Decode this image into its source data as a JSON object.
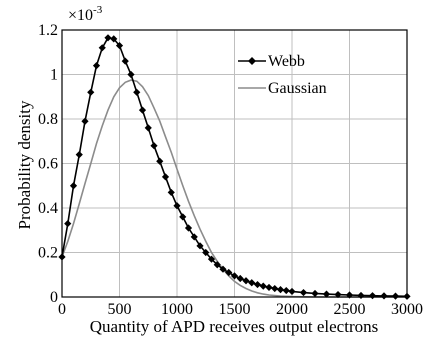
{
  "chart_data": {
    "type": "line",
    "xlabel": "Quantity of APD receives output electrons",
    "ylabel": "Probability density",
    "y_multiplier": "×10",
    "y_multiplier_exponent": "-3",
    "xlim": [
      0,
      3000
    ],
    "ylim": [
      0,
      1.2
    ],
    "x_ticks": [
      "0",
      "500",
      "1000",
      "1500",
      "2000",
      "2500",
      "3000"
    ],
    "y_ticks": [
      "0",
      "0.2",
      "0.4",
      "0.6",
      "0.8",
      "1",
      "1.2"
    ],
    "grid": true,
    "legend_position": "top-right",
    "series": [
      {
        "name": "Webb",
        "color": "#000000",
        "marker": "diamond",
        "x": [
          0,
          50,
          100,
          150,
          200,
          250,
          300,
          350,
          400,
          450,
          500,
          550,
          600,
          650,
          700,
          750,
          800,
          850,
          900,
          950,
          1000,
          1050,
          1100,
          1150,
          1200,
          1250,
          1300,
          1350,
          1400,
          1450,
          1500,
          1550,
          1600,
          1650,
          1700,
          1750,
          1800,
          1850,
          1900,
          1950,
          2000,
          2100,
          2200,
          2300,
          2400,
          2500,
          2600,
          2700,
          2800,
          2900,
          3000
        ],
        "y": [
          0.18,
          0.33,
          0.5,
          0.64,
          0.79,
          0.92,
          1.04,
          1.12,
          1.165,
          1.16,
          1.13,
          1.06,
          1.0,
          0.92,
          0.84,
          0.76,
          0.68,
          0.61,
          0.54,
          0.47,
          0.41,
          0.36,
          0.31,
          0.27,
          0.23,
          0.2,
          0.17,
          0.145,
          0.125,
          0.11,
          0.095,
          0.083,
          0.073,
          0.064,
          0.056,
          0.049,
          0.043,
          0.038,
          0.033,
          0.029,
          0.025,
          0.02,
          0.016,
          0.013,
          0.011,
          0.009,
          0.007,
          0.006,
          0.005,
          0.004,
          0.003
        ]
      },
      {
        "name": "Gaussian",
        "color": "#8c8c8c",
        "marker": "none",
        "x": [
          0,
          50,
          100,
          150,
          200,
          250,
          300,
          350,
          400,
          450,
          500,
          550,
          600,
          650,
          700,
          750,
          800,
          850,
          900,
          950,
          1000,
          1050,
          1100,
          1150,
          1200,
          1250,
          1300,
          1350,
          1400,
          1450,
          1500,
          1550,
          1600,
          1650,
          1700,
          1750,
          1800,
          1900,
          2000,
          2100,
          2200,
          2400,
          2600,
          2800,
          3000
        ],
        "y": [
          0.18,
          0.25,
          0.33,
          0.42,
          0.51,
          0.6,
          0.69,
          0.77,
          0.84,
          0.9,
          0.94,
          0.965,
          0.975,
          0.97,
          0.945,
          0.905,
          0.85,
          0.79,
          0.72,
          0.65,
          0.575,
          0.5,
          0.43,
          0.365,
          0.305,
          0.25,
          0.2,
          0.16,
          0.125,
          0.095,
          0.07,
          0.052,
          0.038,
          0.027,
          0.019,
          0.013,
          0.009,
          0.004,
          0.002,
          0.001,
          0.0005,
          0.0002,
          0.0001,
          0.0,
          0.0
        ]
      }
    ]
  }
}
